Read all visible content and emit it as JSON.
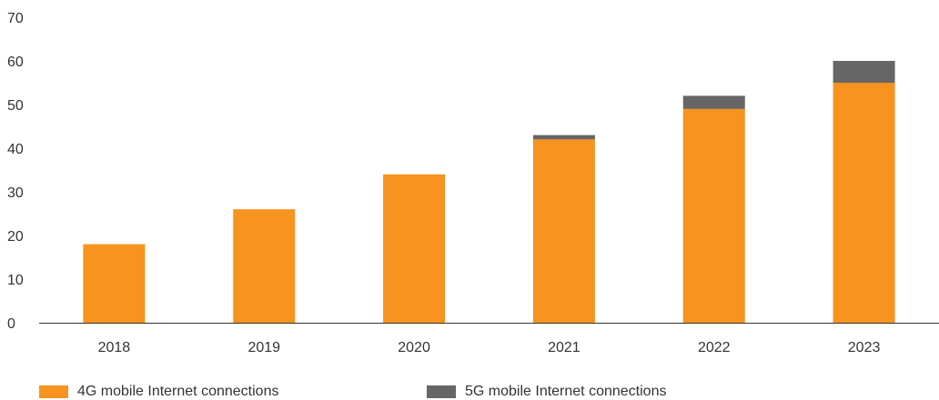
{
  "chart_data": {
    "type": "bar",
    "stacked": true,
    "categories": [
      "2018",
      "2019",
      "2020",
      "2021",
      "2022",
      "2023"
    ],
    "series": [
      {
        "name": "4G mobile Internet connections",
        "color": "#F7931E",
        "values": [
          18,
          26,
          34,
          42,
          49,
          55
        ]
      },
      {
        "name": "5G mobile Internet connections",
        "color": "#666666",
        "values": [
          0,
          0,
          0,
          1,
          3,
          5
        ]
      }
    ],
    "ylim": [
      0,
      70
    ],
    "yticks": [
      "0",
      "10",
      "20",
      "30",
      "40",
      "50",
      "60",
      "70"
    ],
    "grid": false,
    "legend_position": "bottom",
    "title": "",
    "xlabel": "",
    "ylabel": ""
  }
}
